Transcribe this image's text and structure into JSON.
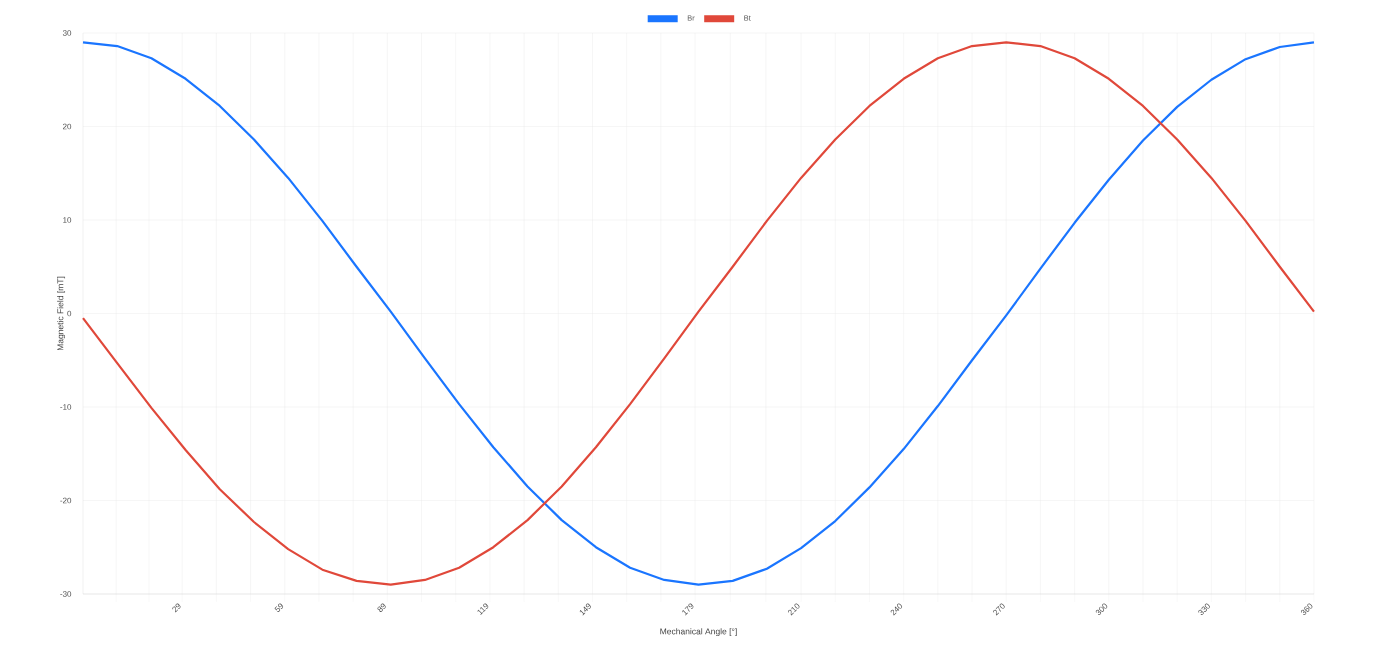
{
  "chart_data": {
    "type": "line",
    "xlabel": "Mechanical Angle [°]",
    "ylabel": "Magnetic Field [mT]",
    "x": [
      0,
      10,
      20,
      30,
      40,
      50,
      60,
      70,
      80,
      90,
      100,
      110,
      120,
      130,
      140,
      150,
      160,
      170,
      180,
      190,
      200,
      210,
      220,
      230,
      240,
      250,
      260,
      270,
      280,
      290,
      300,
      310,
      320,
      330,
      340,
      350,
      360
    ],
    "series": [
      {
        "name": "Br",
        "color": "#1a75ff",
        "values": [
          29,
          28.6,
          27.3,
          25.1,
          22.2,
          18.6,
          14.5,
          9.9,
          5.0,
          0.2,
          -4.8,
          -9.7,
          -14.3,
          -18.5,
          -22.1,
          -25.0,
          -27.2,
          -28.5,
          -29,
          -28.6,
          -27.3,
          -25.1,
          -22.2,
          -18.6,
          -14.5,
          -9.9,
          -5.0,
          -0.2,
          4.8,
          9.7,
          14.3,
          18.5,
          22.1,
          25.0,
          27.2,
          28.5,
          29
        ]
      },
      {
        "name": "Bt",
        "color": "#e0483a",
        "values": [
          -0.5,
          -5.3,
          -10.1,
          -14.6,
          -18.8,
          -22.3,
          -25.2,
          -27.4,
          -28.6,
          -29,
          -28.5,
          -27.2,
          -25.0,
          -22.1,
          -18.5,
          -14.3,
          -9.7,
          -4.8,
          0.2,
          5.0,
          9.9,
          14.5,
          18.6,
          22.2,
          25.1,
          27.3,
          28.6,
          29,
          28.6,
          27.3,
          25.1,
          22.2,
          18.6,
          14.5,
          9.9,
          5.0,
          0.2
        ]
      }
    ],
    "xlim": [
      0,
      360
    ],
    "xticks": [
      {
        "value": 9.7,
        "label": null
      },
      {
        "value": 19.3,
        "label": null
      },
      29,
      {
        "value": 39,
        "label": null
      },
      {
        "value": 49,
        "label": null
      },
      59,
      {
        "value": 69,
        "label": null
      },
      {
        "value": 79,
        "label": null
      },
      89,
      {
        "value": 99,
        "label": null
      },
      {
        "value": 109,
        "label": null
      },
      119,
      {
        "value": 129,
        "label": null
      },
      {
        "value": 139,
        "label": null
      },
      149,
      {
        "value": 159,
        "label": null
      },
      {
        "value": 169,
        "label": null
      },
      179,
      {
        "value": 189.3,
        "label": null
      },
      {
        "value": 199.7,
        "label": null
      },
      210,
      {
        "value": 220,
        "label": null
      },
      {
        "value": 230,
        "label": null
      },
      240,
      {
        "value": 250,
        "label": null
      },
      {
        "value": 260,
        "label": null
      },
      270,
      {
        "value": 280,
        "label": null
      },
      {
        "value": 290,
        "label": null
      },
      300,
      {
        "value": 310,
        "label": null
      },
      {
        "value": 320,
        "label": null
      },
      330,
      {
        "value": 340,
        "label": null
      },
      {
        "value": 350,
        "label": null
      },
      360
    ],
    "ylim": [
      -30,
      30
    ],
    "yticks": [
      -30,
      -20,
      -10,
      0,
      10,
      20,
      30
    ],
    "grid": true,
    "legend": "top",
    "marker": "none",
    "line_style": "solid"
  }
}
